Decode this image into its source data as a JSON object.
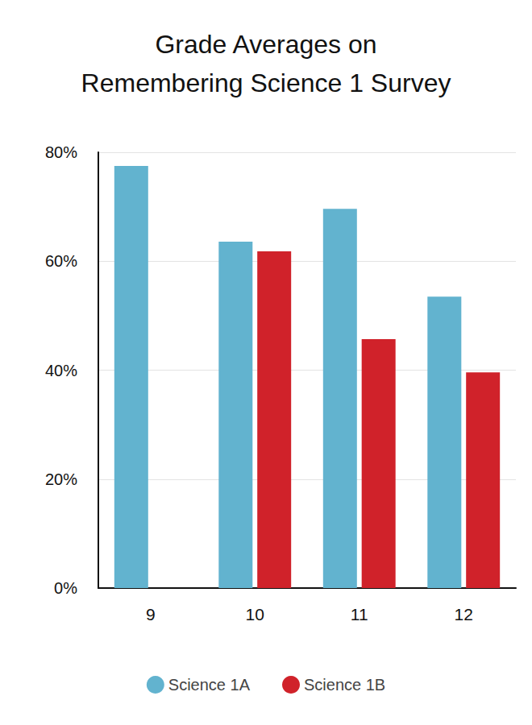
{
  "chart_data": {
    "type": "bar",
    "title": "Grade Averages on\nRemembering Science 1 Survey",
    "categories": [
      "9",
      "10",
      "11",
      "12"
    ],
    "series": [
      {
        "name": "Science 1A",
        "color": "#62b3cf",
        "values": [
          77.5,
          63.6,
          69.6,
          53.5
        ]
      },
      {
        "name": "Science 1B",
        "color": "#d0222a",
        "values": [
          null,
          61.8,
          45.7,
          39.6
        ]
      }
    ],
    "ylim": [
      0,
      80
    ],
    "yticks": [
      {
        "value": 0,
        "label": "0%"
      },
      {
        "value": 20,
        "label": "20%"
      },
      {
        "value": 40,
        "label": "40%"
      },
      {
        "value": 60,
        "label": "60%"
      },
      {
        "value": 80,
        "label": "80%"
      }
    ],
    "grid": true,
    "legend": "bottom"
  }
}
